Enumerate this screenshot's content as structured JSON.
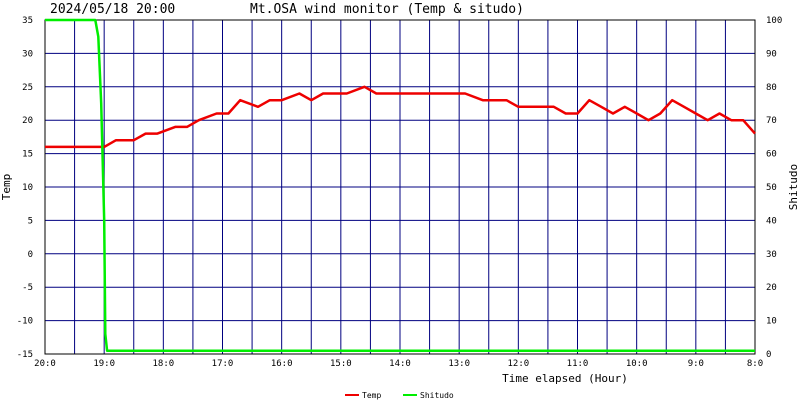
{
  "header": {
    "timestamp": "2024/05/18 20:00",
    "title": "Mt.OSA wind monitor (Temp & situdo)"
  },
  "chart_data": {
    "type": "line",
    "title": "Mt.OSA wind monitor (Temp & situdo)",
    "xlabel": "Time elapsed (Hour)",
    "ylabel_left": "Temp",
    "ylabel_right": "Shitudo",
    "x_tick_labels": [
      "20:0",
      "19:0",
      "18:0",
      "17:0",
      "16:0",
      "15:0",
      "14:0",
      "13:0",
      "12:0",
      "11:0",
      "10:0",
      "9:0",
      "8:0"
    ],
    "x_range_hours": [
      0,
      12
    ],
    "ylim_left": [
      -15,
      35
    ],
    "ylim_right": [
      0,
      100
    ],
    "y_ticks_left": [
      35,
      30,
      25,
      20,
      15,
      10,
      5,
      0,
      -5,
      -10,
      -15
    ],
    "y_ticks_right": [
      100,
      90,
      80,
      70,
      60,
      50,
      40,
      30,
      20,
      10,
      0
    ],
    "grid": true,
    "legend_position": "bottom-center",
    "series": [
      {
        "name": "Temp",
        "axis": "left",
        "color": "#ee0000",
        "x": [
          0,
          1.0,
          1.2,
          1.5,
          1.7,
          1.9,
          2.2,
          2.4,
          2.6,
          2.9,
          3.1,
          3.3,
          3.6,
          3.8,
          4.0,
          4.3,
          4.5,
          4.7,
          4.9,
          5.1,
          5.4,
          5.6,
          5.9,
          6.4,
          6.8,
          7.1,
          7.4,
          7.6,
          7.8,
          8.0,
          8.2,
          8.4,
          8.6,
          8.8,
          9.0,
          9.2,
          9.4,
          9.6,
          9.8,
          10.0,
          10.2,
          10.4,
          10.6,
          10.8,
          11.0,
          11.2,
          11.4,
          11.6,
          11.8,
          12.0
        ],
        "values": [
          16,
          16,
          17,
          17,
          18,
          18,
          19,
          19,
          20,
          21,
          21,
          23,
          22,
          23,
          23,
          24,
          23,
          24,
          24,
          24,
          25,
          24,
          24,
          24,
          24,
          24,
          23,
          23,
          23,
          22,
          22,
          22,
          22,
          21,
          21,
          23,
          22,
          21,
          22,
          21,
          20,
          21,
          23,
          22,
          21,
          20,
          21,
          20,
          20,
          18
        ]
      },
      {
        "name": "Shitudo",
        "axis": "right",
        "color": "#00ee00",
        "x": [
          0,
          0.85,
          0.9,
          0.95,
          1.0,
          1.02,
          1.05,
          12.0
        ],
        "values": [
          100,
          100,
          95,
          75,
          40,
          6,
          1,
          1
        ]
      }
    ]
  }
}
